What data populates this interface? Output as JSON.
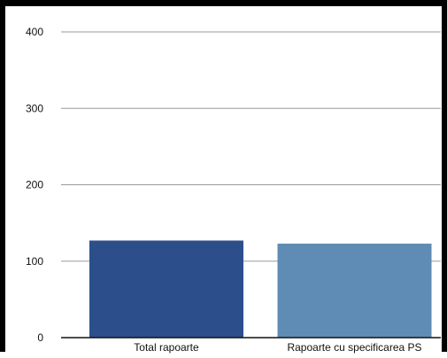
{
  "chart_data": {
    "type": "bar",
    "categories": [
      "Total rapoarte",
      "Rapoarte cu specificarea PS"
    ],
    "values": [
      127,
      123
    ],
    "colors": [
      "#2c4f8c",
      "#5f8cb4"
    ],
    "ylim": [
      0,
      400
    ],
    "yticks": [
      "0",
      "100",
      "200",
      "300",
      "400"
    ],
    "grid": true,
    "title": "",
    "xlabel": "",
    "ylabel": ""
  }
}
